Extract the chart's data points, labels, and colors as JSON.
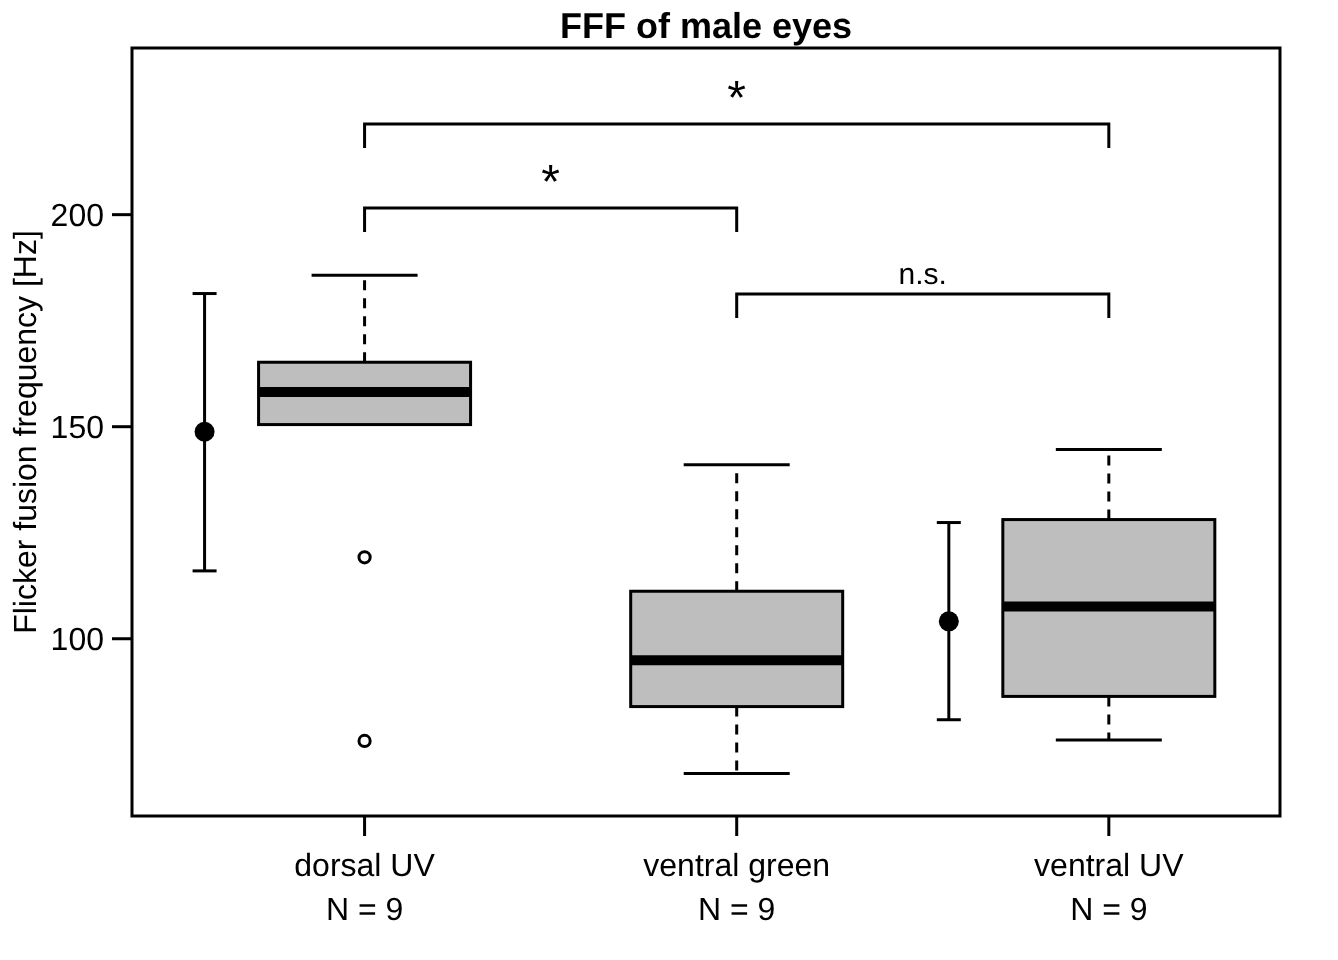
{
  "chart_data": {
    "type": "box",
    "title": "FFF of male eyes",
    "ylabel": "Flicker fusion frequency [Hz]",
    "categories": [
      "dorsal UV\nN = 9",
      "ventral green\nN = 9",
      "ventral UV\nN = 9"
    ],
    "ylim": [
      58.2,
      239.3
    ],
    "yticks": [
      100,
      150,
      200
    ],
    "grid": false,
    "series": [
      {
        "color": "#bebebe",
        "boxes": [
          {
            "low": 150.5,
            "q1": 150.5,
            "median": 158.2,
            "q3": 165.2,
            "high": 185.7,
            "outliers": [
              119.2,
              75.9
            ]
          },
          {
            "low": 68.2,
            "q1": 84,
            "median": 94.9,
            "q3": 111.2,
            "high": 141
          },
          {
            "low": 76.1,
            "q1": 86.4,
            "median": 107.6,
            "q3": 128.1,
            "high": 144.6
          }
        ]
      },
      {
        "type": "scatter",
        "color": "#000000",
        "marker": "circle",
        "x": [
          "dorsal UV\nN = 9",
          "ventral UV\nN = 9"
        ],
        "values": [
          148.8,
          104.1
        ],
        "errors": [
          [
            116,
            181.4
          ],
          [
            80.9,
            127.4
          ]
        ]
      }
    ],
    "annotations": [
      "*",
      "*",
      "n.s."
    ]
  }
}
